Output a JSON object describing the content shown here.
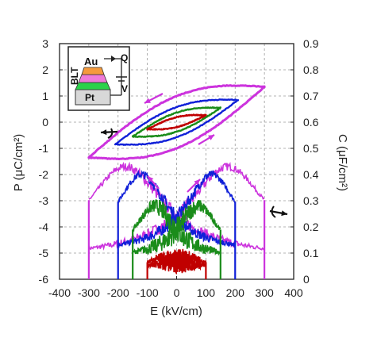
{
  "chart_data": {
    "type": "line",
    "xlabel": "E (kV/cm)",
    "ylabel_left": "P (μC/cm²)",
    "ylabel_right": "C (μF/cm²)",
    "xlim": [
      -400,
      400
    ],
    "ylim_left": [
      -6,
      3
    ],
    "ylim_right": [
      0,
      0.9
    ],
    "x_ticks": [
      "-400",
      "-300",
      "-200",
      "-100",
      "0",
      "100",
      "200",
      "300",
      "400"
    ],
    "y_left_ticks": [
      "-6",
      "-5",
      "-4",
      "-3",
      "-2",
      "-1",
      "0",
      "1",
      "2",
      "3"
    ],
    "y_right_ticks": [
      "0",
      "0.1",
      "0.2",
      "0.3",
      "0.4",
      "0.5",
      "0.6",
      "0.7",
      "0.8",
      "0.9"
    ],
    "grid": true,
    "colors": {
      "red": "#c00000",
      "green": "#1a8c1a",
      "blue": "#1020d8",
      "magenta": "#cc33dd"
    },
    "pe_loops": [
      {
        "color": "red",
        "e_max": 100,
        "p_max": 0.45,
        "p_r": 0.18
      },
      {
        "color": "green",
        "e_max": 150,
        "p_max": 0.9,
        "p_r": 0.35
      },
      {
        "color": "blue",
        "e_max": 210,
        "p_max": 1.4,
        "p_r": 0.55
      },
      {
        "color": "magenta",
        "e_max": 300,
        "p_max": 2.3,
        "p_r": 0.95
      }
    ],
    "ce_curves": [
      {
        "color": "red",
        "e_max": 100,
        "c_peak": 0.08,
        "c_base": 0.05,
        "e_peak": 45
      },
      {
        "color": "green",
        "e_max": 150,
        "c_peak": 0.28,
        "c_base": 0.08,
        "e_peak": 75
      },
      {
        "color": "blue",
        "e_max": 200,
        "c_peak": 0.4,
        "c_base": 0.1,
        "e_peak": 120
      },
      {
        "color": "magenta",
        "e_max": 300,
        "c_peak": 0.43,
        "c_base": 0.08,
        "e_peak": 175
      }
    ],
    "inset_labels": {
      "top": "Au",
      "side": "BLT",
      "bottom": "Pt",
      "charge": "Q",
      "voltage": "V"
    }
  }
}
